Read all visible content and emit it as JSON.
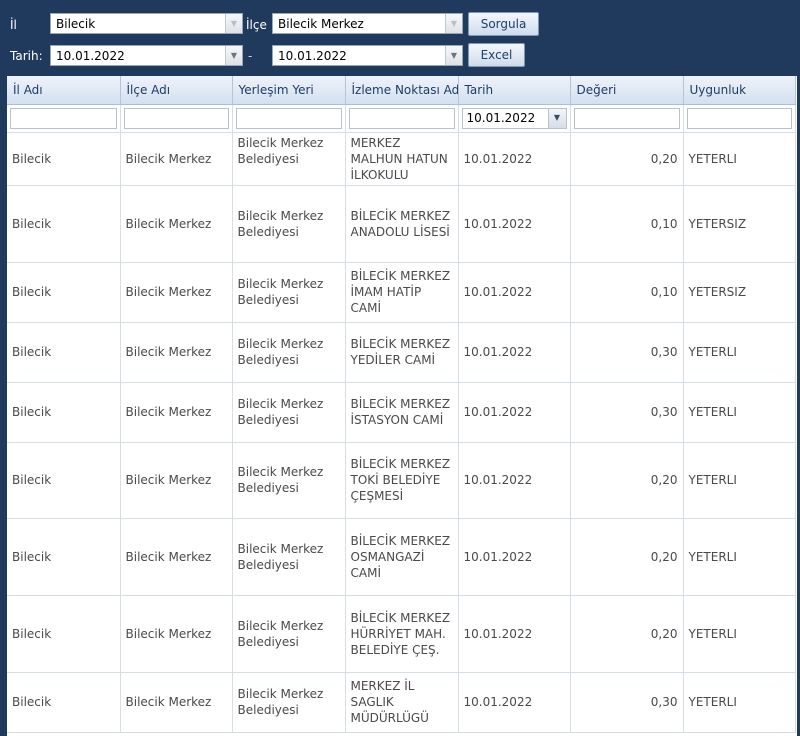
{
  "form": {
    "il_label": "İl",
    "il_value": "Bilecik",
    "ilce_label": "İlçe",
    "ilce_value": "Bilecik Merkez",
    "tarih_label": "Tarih:",
    "tarih_from": "10.01.2022",
    "separator": "-",
    "tarih_to": "10.01.2022",
    "sorgula_label": "Sorgula",
    "excel_label": "Excel"
  },
  "table": {
    "headers": [
      "İl Adı",
      "İlçe Adı",
      "Yerleşim Yeri",
      "İzleme Noktası Adı",
      "Tarih",
      "Değeri",
      "Uygunluk"
    ],
    "filter_date": "10.01.2022",
    "rows": [
      {
        "il": "Bilecik",
        "ilce": "Bilecik Merkez",
        "yer": "Bilecik Merkez Belediyesi",
        "nokta": "MERKEZ MALHUN HATUN İLKOKULU",
        "tarih": "10.01.2022",
        "deger": "0,20",
        "uygunluk": "YETERLI"
      },
      {
        "il": "Bilecik",
        "ilce": "Bilecik Merkez",
        "yer": "Bilecik Merkez Belediyesi",
        "nokta": "BİLECİK MERKEZ ANADOLU LİSESİ",
        "tarih": "10.01.2022",
        "deger": "0,10",
        "uygunluk": "YETERSIZ"
      },
      {
        "il": "Bilecik",
        "ilce": "Bilecik Merkez",
        "yer": "Bilecik Merkez Belediyesi",
        "nokta": "BİLECİK MERKEZ İMAM HATİP CAMİ",
        "tarih": "10.01.2022",
        "deger": "0,10",
        "uygunluk": "YETERSIZ"
      },
      {
        "il": "Bilecik",
        "ilce": "Bilecik Merkez",
        "yer": "Bilecik Merkez Belediyesi",
        "nokta": "BİLECİK MERKEZ YEDİLER CAMİ",
        "tarih": "10.01.2022",
        "deger": "0,30",
        "uygunluk": "YETERLI"
      },
      {
        "il": "Bilecik",
        "ilce": "Bilecik Merkez",
        "yer": "Bilecik Merkez Belediyesi",
        "nokta": "BİLECİK MERKEZ İSTASYON CAMİ",
        "tarih": "10.01.2022",
        "deger": "0,30",
        "uygunluk": "YETERLI"
      },
      {
        "il": "Bilecik",
        "ilce": "Bilecik Merkez",
        "yer": "Bilecik Merkez Belediyesi",
        "nokta": "BİLECİK MERKEZ TOKİ BELEDİYE ÇEŞMESİ",
        "tarih": "10.01.2022",
        "deger": "0,20",
        "uygunluk": "YETERLI"
      },
      {
        "il": "Bilecik",
        "ilce": "Bilecik Merkez",
        "yer": "Bilecik Merkez Belediyesi",
        "nokta": "BİLECİK MERKEZ OSMANGAZİ CAMİ",
        "tarih": "10.01.2022",
        "deger": "0,20",
        "uygunluk": "YETERLI"
      },
      {
        "il": "Bilecik",
        "ilce": "Bilecik Merkez",
        "yer": "Bilecik Merkez Belediyesi",
        "nokta": "BİLECİK MERKEZ HÜRRİYET MAH. BELEDİYE ÇEŞ.",
        "tarih": "10.01.2022",
        "deger": "0,20",
        "uygunluk": "YETERLI"
      },
      {
        "il": "Bilecik",
        "ilce": "Bilecik Merkez",
        "yer": "Bilecik Merkez Belediyesi",
        "nokta": "MERKEZ İL SAGLIK MÜDÜRLÜGÜ",
        "tarih": "10.01.2022",
        "deger": "0,30",
        "uygunluk": "YETERLI"
      }
    ]
  }
}
